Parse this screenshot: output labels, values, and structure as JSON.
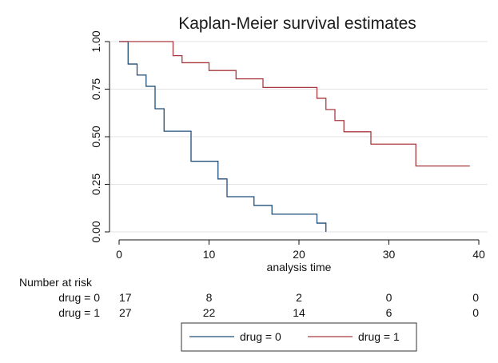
{
  "chart_data": {
    "type": "line",
    "step": true,
    "title": "Kaplan-Meier survival estimates",
    "xlabel": "analysis time",
    "ylabel": "",
    "xlim": [
      0,
      40
    ],
    "ylim": [
      0,
      1
    ],
    "x_ticks": [
      "0",
      "10",
      "20",
      "30",
      "40"
    ],
    "x_tick_values": [
      0,
      10,
      20,
      30,
      40
    ],
    "y_ticks": [
      "0.00",
      "0.25",
      "0.50",
      "0.75",
      "1.00"
    ],
    "y_tick_values": [
      0,
      0.25,
      0.5,
      0.75,
      1.0
    ],
    "grid": true,
    "legend_position": "bottom",
    "series": [
      {
        "name": "drug = 0",
        "color": "#1f4e79",
        "x": [
          0,
          1,
          2,
          3,
          4,
          5,
          8,
          11,
          12,
          15,
          17,
          22,
          23
        ],
        "y": [
          1.0,
          0.882,
          0.824,
          0.765,
          0.647,
          0.529,
          0.371,
          0.278,
          0.185,
          0.139,
          0.093,
          0.046,
          0.0
        ]
      },
      {
        "name": "drug = 1",
        "color": "#a83a3f",
        "x": [
          0,
          6,
          7,
          10,
          13,
          16,
          22,
          23,
          24,
          25,
          28,
          33,
          39
        ],
        "y": [
          1.0,
          0.926,
          0.889,
          0.848,
          0.804,
          0.759,
          0.702,
          0.643,
          0.585,
          0.526,
          0.461,
          0.346,
          0.346
        ]
      }
    ],
    "risk_table": {
      "header": "Number at risk",
      "rows": [
        {
          "label": "drug = 0",
          "values": [
            "17",
            "8",
            "2",
            "0",
            "0"
          ]
        },
        {
          "label": "drug = 1",
          "values": [
            "27",
            "22",
            "14",
            "6",
            "0"
          ]
        }
      ]
    }
  }
}
